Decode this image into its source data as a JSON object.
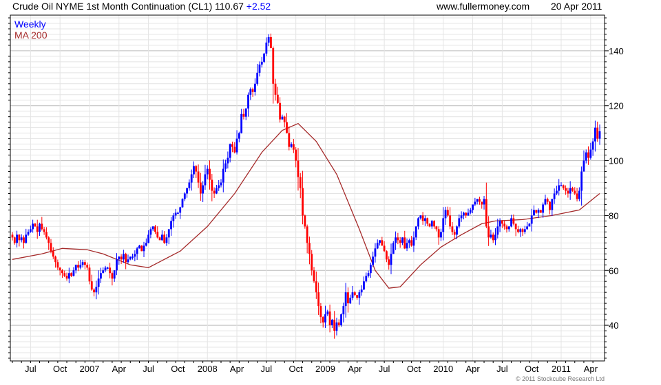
{
  "header": {
    "title": "Crude Oil NYME 1st Month Continuation (CL1)",
    "last": "110.67",
    "change": "+2.52",
    "site": "www.fullermoney.com",
    "date": "20 Apr 2011"
  },
  "legend": {
    "series": "Weekly",
    "ma": "MA 200"
  },
  "copyright": "© 2011 Stockcube Research Ltd",
  "colors": {
    "up": "#0000ff",
    "down": "#ff0000",
    "ma": "#a52a2a",
    "grid_major": "#bbbbbb",
    "grid_minor": "#e4e4e4"
  },
  "chart_data": {
    "type": "candlestick",
    "title": "Crude Oil NYME 1st Month Continuation (CL1)",
    "frequency": "Weekly",
    "ylim": [
      27,
      153
    ],
    "yticks": [
      40,
      60,
      80,
      100,
      120,
      140
    ],
    "y_minor_step": 2,
    "xtick_labels": [
      "Jul",
      "Oct",
      "2007",
      "Apr",
      "Jul",
      "Oct",
      "2008",
      "Apr",
      "Jul",
      "Oct",
      "2009",
      "Apr",
      "Jul",
      "Oct",
      "2010",
      "Apr",
      "Jul",
      "Oct",
      "2011",
      "Apr"
    ],
    "first_label_week": 8,
    "weeks_per_label": 13,
    "first_open": 73,
    "closes": [
      72,
      70,
      73,
      71,
      72,
      70,
      73,
      74,
      75,
      77,
      76,
      74,
      77,
      75,
      74,
      72,
      70,
      67,
      65,
      63,
      61,
      60,
      59,
      58,
      57,
      59,
      58,
      60,
      62,
      61,
      62,
      63,
      62,
      61,
      56,
      53,
      52,
      54,
      57,
      59,
      60,
      61,
      61,
      59,
      57,
      60,
      64,
      65,
      64,
      66,
      63,
      64,
      65,
      65,
      66,
      68,
      69,
      67,
      69,
      70,
      73,
      75,
      76,
      74,
      72,
      71,
      73,
      70,
      72,
      75,
      78,
      80,
      81,
      81,
      83,
      86,
      88,
      90,
      92,
      95,
      98,
      96,
      92,
      88,
      91,
      95,
      97,
      93,
      89,
      88,
      90,
      91,
      92,
      97,
      99,
      101,
      106,
      105,
      103,
      108,
      110,
      117,
      116,
      119,
      124,
      126,
      125,
      128,
      132,
      135,
      136,
      139,
      143,
      145,
      141,
      128,
      124,
      121,
      115,
      116,
      114,
      110,
      105,
      106,
      104,
      100,
      94,
      90,
      80,
      76,
      70,
      66,
      60,
      56,
      52,
      47,
      43,
      41,
      44,
      45,
      40,
      42,
      38,
      41,
      40,
      44,
      47,
      52,
      48,
      50,
      52,
      51,
      50,
      52,
      53,
      56,
      58,
      59,
      62,
      65,
      68,
      70,
      71,
      69,
      67,
      64,
      62,
      66,
      70,
      72,
      71,
      70,
      72,
      68,
      70,
      71,
      69,
      72,
      76,
      79,
      80,
      78,
      79,
      77,
      76,
      78,
      76,
      75,
      72,
      74,
      79,
      82,
      80,
      76,
      74,
      73,
      76,
      79,
      80,
      81,
      80,
      81,
      82,
      84,
      85,
      86,
      85,
      84,
      86,
      76,
      72,
      73,
      71,
      73,
      76,
      78,
      77,
      76,
      75,
      76,
      79,
      77,
      75,
      74,
      75,
      74,
      75,
      76,
      77,
      80,
      82,
      81,
      82,
      81,
      84,
      86,
      85,
      82,
      86,
      88,
      89,
      91,
      91,
      90,
      89,
      88,
      90,
      89,
      88,
      86,
      89,
      96,
      100,
      103,
      101,
      104,
      107,
      112,
      108,
      110.67
    ],
    "ma200_points": [
      [
        0,
        64
      ],
      [
        13,
        66
      ],
      [
        22,
        68
      ],
      [
        33,
        67.5
      ],
      [
        40,
        66
      ],
      [
        52,
        62
      ],
      [
        60,
        61
      ],
      [
        74,
        67
      ],
      [
        86,
        76
      ],
      [
        98,
        88
      ],
      [
        110,
        103
      ],
      [
        119,
        111
      ],
      [
        126,
        113.5
      ],
      [
        134,
        107
      ],
      [
        143,
        95
      ],
      [
        153,
        75
      ],
      [
        160,
        60
      ],
      [
        166,
        53.5
      ],
      [
        171,
        54
      ],
      [
        180,
        62
      ],
      [
        189,
        68.5
      ],
      [
        198,
        73
      ],
      [
        207,
        77
      ],
      [
        213,
        78
      ],
      [
        225,
        78.5
      ],
      [
        238,
        80
      ],
      [
        250,
        82
      ],
      [
        259,
        88
      ]
    ]
  }
}
